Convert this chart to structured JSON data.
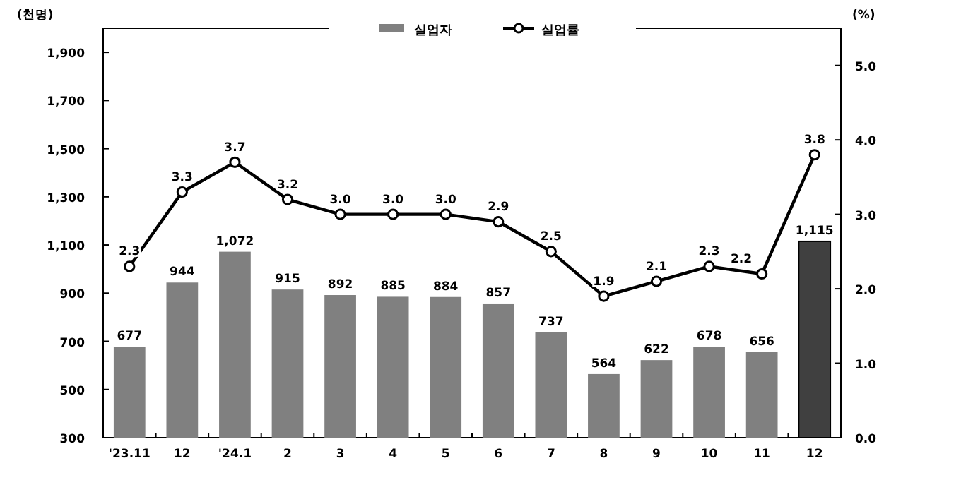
{
  "chart_data": {
    "type": "bar",
    "ylabel": "(천명)",
    "y2label": "(%)",
    "categories": [
      "'23.11",
      "12",
      "'24.1",
      "2",
      "3",
      "4",
      "5",
      "6",
      "7",
      "8",
      "9",
      "10",
      "11",
      "12"
    ],
    "series": [
      {
        "name": "실업자",
        "color": "#808080",
        "colors": [
          "#808080",
          "#808080",
          "#808080",
          "#808080",
          "#808080",
          "#808080",
          "#808080",
          "#808080",
          "#808080",
          "#808080",
          "#808080",
          "#808080",
          "#808080",
          "#404040"
        ],
        "values": [
          677,
          944,
          1072,
          915,
          892,
          885,
          884,
          857,
          737,
          564,
          622,
          678,
          656,
          1115
        ],
        "value_labels": [
          "677",
          "944",
          "1,072",
          "915",
          "892",
          "885",
          "884",
          "857",
          "737",
          "564",
          "622",
          "678",
          "656",
          "1,115"
        ]
      },
      {
        "name": "실업률",
        "type": "line",
        "axis": "y2",
        "color": "#000000",
        "marker": "circle",
        "values": [
          2.3,
          3.3,
          3.7,
          3.2,
          3.0,
          3.0,
          3.0,
          2.9,
          2.5,
          1.9,
          2.1,
          2.3,
          2.2,
          3.8
        ],
        "value_labels": [
          "2.3",
          "3.3",
          "3.7",
          "3.2",
          "3.0",
          "3.0",
          "3.0",
          "2.9",
          "2.5",
          "1.9",
          "2.1",
          "2.3",
          "2.2",
          "3.8"
        ]
      }
    ],
    "ylim": [
      300,
      2000
    ],
    "yticks": [
      300,
      500,
      700,
      900,
      {
        "value": 1100,
        "label": "1,100"
      },
      {
        "value": 1300,
        "label": "1,300"
      },
      {
        "value": 1500,
        "label": "1,500"
      },
      {
        "value": 1700,
        "label": "1,700"
      },
      {
        "value": 1900,
        "label": "1,900"
      }
    ],
    "y2lim": [
      0,
      5.5
    ],
    "y2ticks": [
      {
        "value": 0,
        "label": "0.0"
      },
      {
        "value": 1,
        "label": "1.0"
      },
      {
        "value": 2,
        "label": "2.0"
      },
      {
        "value": 3,
        "label": "3.0"
      },
      {
        "value": 4,
        "label": "4.0"
      },
      {
        "value": 5,
        "label": "5.0"
      }
    ],
    "legend": "top",
    "grid": false
  }
}
